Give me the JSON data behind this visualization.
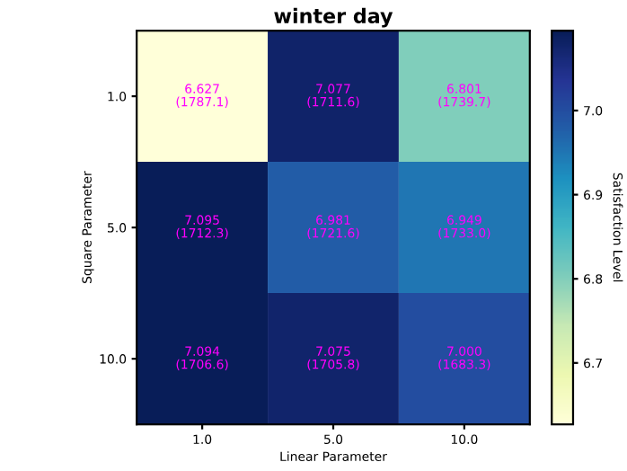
{
  "chart_data": {
    "type": "heatmap",
    "title": "winter day",
    "xlabel": "Linear Parameter",
    "ylabel": "Square Parameter",
    "clabel": "Satisfaction Level",
    "categories": [
      "1.0",
      "5.0",
      "10.0"
    ],
    "y_categories": [
      "1.0",
      "5.0",
      "10.0"
    ],
    "cells": [
      [
        6.627,
        7.077,
        6.801
      ],
      [
        7.095,
        6.981,
        6.949
      ],
      [
        7.094,
        7.075,
        7.0
      ]
    ],
    "cell_labels": [
      [
        "6.627\n(1787.1)",
        "7.077\n(1711.6)",
        "6.801\n(1739.7)"
      ],
      [
        "7.095\n(1712.3)",
        "6.981\n(1721.6)",
        "6.949\n(1733.0)"
      ],
      [
        "7.094\n(1706.6)",
        "7.075\n(1705.8)",
        "7.000\n(1683.3)"
      ]
    ],
    "clim": [
      6.627,
      7.095
    ],
    "cticks": [
      6.7,
      6.8,
      6.9,
      {
        "value": 7,
        "label": "7.0"
      }
    ]
  }
}
